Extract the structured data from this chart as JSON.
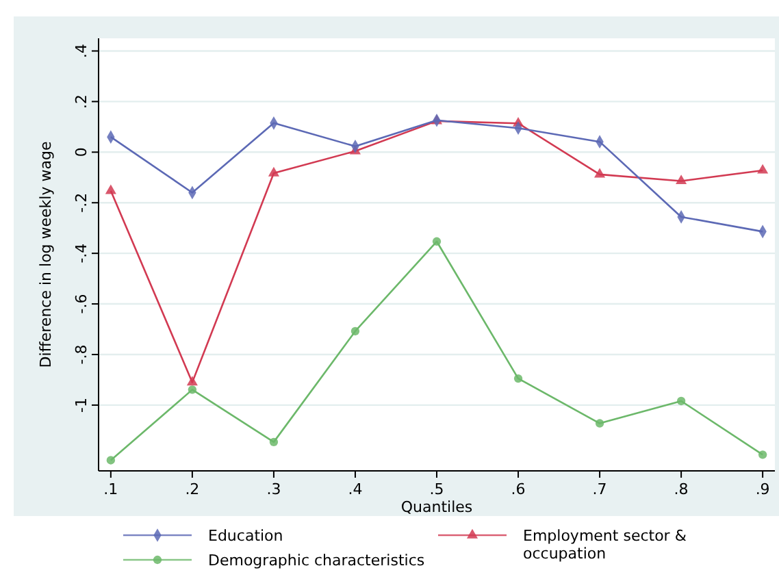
{
  "chart_data": {
    "type": "line",
    "xlabel": "Quantiles",
    "ylabel": "Difference in log weekly wage",
    "x": [
      0.1,
      0.2,
      0.3,
      0.4,
      0.5,
      0.6,
      0.7,
      0.8,
      0.9
    ],
    "xlim": [
      0.085,
      0.915
    ],
    "xticks": [
      {
        "value": 0.1,
        "label": ".1"
      },
      {
        "value": 0.2,
        "label": ".2"
      },
      {
        "value": 0.3,
        "label": ".3"
      },
      {
        "value": 0.4,
        "label": ".4"
      },
      {
        "value": 0.5,
        "label": ".5"
      },
      {
        "value": 0.6,
        "label": ".6"
      },
      {
        "value": 0.7,
        "label": ".7"
      },
      {
        "value": 0.8,
        "label": ".8"
      },
      {
        "value": 0.9,
        "label": ".9"
      }
    ],
    "ylim": [
      -1.26,
      0.45
    ],
    "yticks": [
      {
        "value": 0.4,
        "label": ".4"
      },
      {
        "value": 0.2,
        "label": ".2"
      },
      0,
      {
        "value": -0.2,
        "label": "-.2"
      },
      {
        "value": -0.4,
        "label": "-.4"
      },
      {
        "value": -0.6,
        "label": "-.6"
      },
      {
        "value": -0.8,
        "label": "-.8"
      },
      -1
    ],
    "grid": "y",
    "legend": "bottom",
    "series": [
      {
        "name": "Education",
        "color": "#5c69b5",
        "marker": "diamond",
        "values": [
          0.06,
          -0.16,
          0.115,
          0.023,
          0.126,
          0.095,
          0.041,
          -0.256,
          -0.314
        ]
      },
      {
        "name": "Employment sector & occupation",
        "color": "#d23a52",
        "marker": "triangle",
        "values": [
          -0.153,
          -0.91,
          -0.083,
          0.004,
          0.123,
          0.114,
          -0.088,
          -0.114,
          -0.072
        ]
      },
      {
        "name": "Demographic characteristics",
        "color": "#6cb86a",
        "marker": "circle",
        "values": [
          -1.218,
          -0.939,
          -1.146,
          -0.708,
          -0.353,
          -0.895,
          -1.072,
          -0.984,
          -1.196
        ]
      }
    ]
  }
}
